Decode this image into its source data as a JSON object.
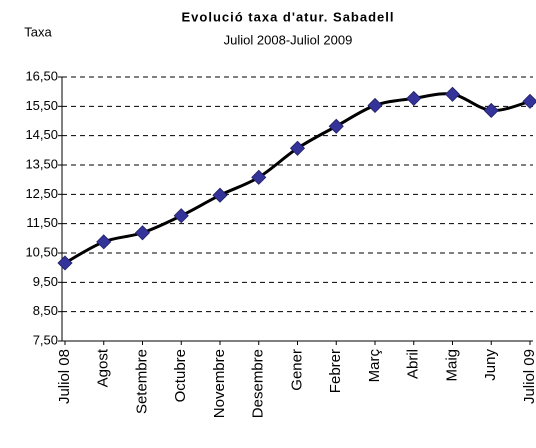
{
  "chart_data": {
    "type": "line",
    "title": "Evolució taxa d'atur. Sabadell",
    "subtitle": "Juliol 2008-Juliol 2009",
    "y_label": "Taxa",
    "categories": [
      "Juliol 08",
      "Agost",
      "Setembre",
      "Octubre",
      "Novembre",
      "Desembre",
      "Gener",
      "Febrer",
      "Març",
      "Abril",
      "Maig",
      "Juny",
      "Juliol 09"
    ],
    "series": [
      {
        "name": "Taxa",
        "color": "#000000",
        "marker_color": "#333399",
        "values": [
          10.16,
          10.88,
          11.19,
          11.77,
          12.47,
          13.08,
          14.07,
          14.82,
          15.53,
          15.77,
          15.91,
          15.36,
          15.67
        ]
      }
    ],
    "ylim": [
      7.5,
      16.5
    ],
    "yticks": [
      {
        "value": 7.5,
        "label": "7,50"
      },
      {
        "value": 8.5,
        "label": "8,50"
      },
      {
        "value": 9.5,
        "label": "9,50"
      },
      {
        "value": 10.5,
        "label": "10,50"
      },
      {
        "value": 11.5,
        "label": "11,50"
      },
      {
        "value": 12.5,
        "label": "12,50"
      },
      {
        "value": 13.5,
        "label": "13,50"
      },
      {
        "value": 14.5,
        "label": "14,50"
      },
      {
        "value": 15.5,
        "label": "15,50"
      },
      {
        "value": 16.5,
        "label": "16,50"
      }
    ],
    "grid": true
  }
}
